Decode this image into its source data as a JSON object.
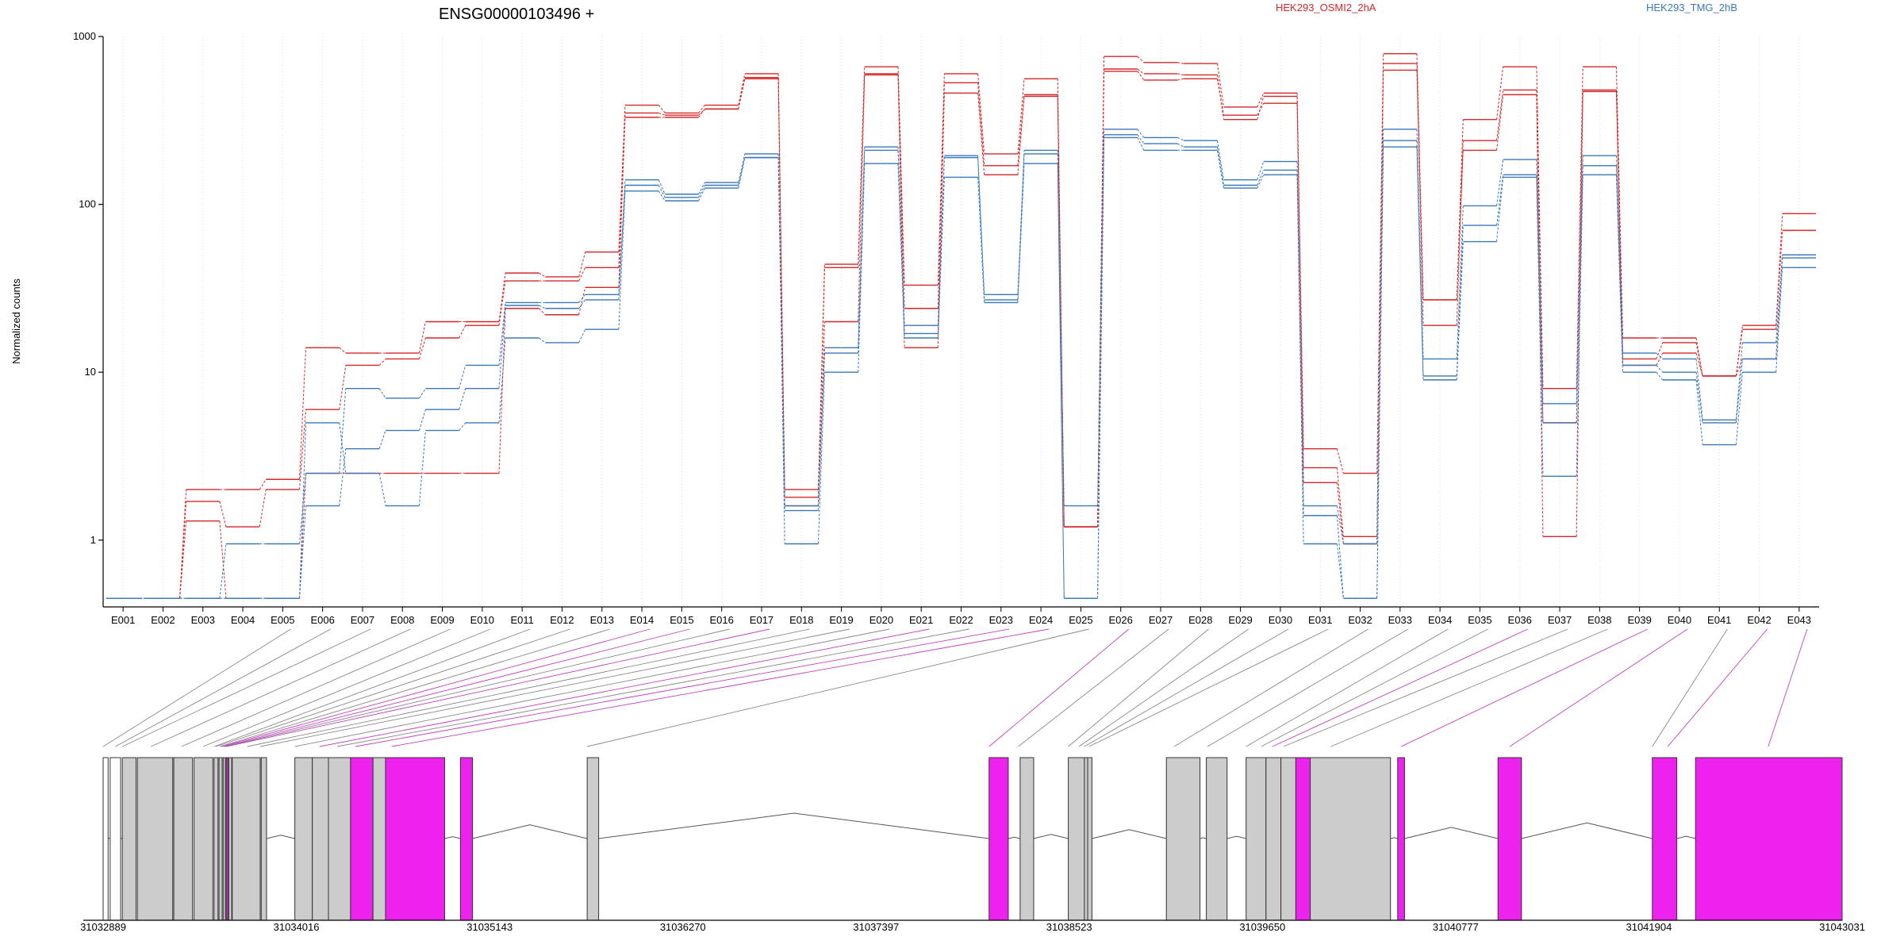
{
  "chart_data": {
    "type": "line",
    "title": "ENSG00000103496 +",
    "ylabel": "Normalized counts",
    "y_scale": "log",
    "ylim": [
      0.4,
      1000
    ],
    "y_ticks": [
      {
        "value": 1,
        "label": "1"
      },
      {
        "value": 10,
        "label": "10"
      },
      {
        "value": 100,
        "label": "100"
      },
      {
        "value": 1000,
        "label": "1000"
      }
    ],
    "grid": "vertical dotted lines at each exon",
    "legend": [
      {
        "name": "HEK293_OSMI2_2hA",
        "color": "#d62728"
      },
      {
        "name": "HEK293_TMG_2hB",
        "color": "#3a78b8"
      }
    ],
    "categories": [
      "E001",
      "E002",
      "E003",
      "E004",
      "E005",
      "E006",
      "E007",
      "E008",
      "E009",
      "E010",
      "E011",
      "E012",
      "E013",
      "E014",
      "E015",
      "E016",
      "E017",
      "E018",
      "E019",
      "E020",
      "E021",
      "E022",
      "E023",
      "E024",
      "E025",
      "E026",
      "E027",
      "E028",
      "E029",
      "E030",
      "E031",
      "E032",
      "E033",
      "E034",
      "E035",
      "E036",
      "E037",
      "E038",
      "E039",
      "E040",
      "E041",
      "E042",
      "E043"
    ],
    "series": [
      {
        "group": "HEK293_OSMI2_2hA",
        "color": "#d62728",
        "values": [
          0.45,
          0.45,
          2.0,
          2.0,
          2.3,
          14,
          13,
          13,
          20,
          20,
          39,
          37,
          52,
          390,
          350,
          390,
          600,
          2.0,
          44,
          660,
          33,
          600,
          200,
          560,
          1.2,
          760,
          700,
          690,
          380,
          460,
          3.5,
          2.5,
          790,
          27,
          320,
          660,
          8,
          660,
          16,
          16,
          9.5,
          19,
          88
        ]
      },
      {
        "group": "HEK293_OSMI2_2hA",
        "color": "#d62728",
        "values": [
          0.45,
          0.45,
          1.7,
          1.2,
          2.0,
          6,
          11,
          12,
          16,
          19,
          35,
          35,
          42,
          350,
          340,
          370,
          570,
          1.8,
          42,
          600,
          24,
          530,
          170,
          450,
          1.2,
          640,
          600,
          590,
          320,
          440,
          2.7,
          1.05,
          690,
          19,
          240,
          480,
          5,
          480,
          12,
          15,
          9.5,
          18,
          70
        ]
      },
      {
        "group": "HEK293_OSMI2_2hA",
        "color": "#d62728",
        "values": [
          0.45,
          0.45,
          1.3,
          0.45,
          0.45,
          2.5,
          2.5,
          2.5,
          2.5,
          2.5,
          24,
          22,
          32,
          330,
          330,
          370,
          560,
          1.6,
          20,
          590,
          14,
          460,
          150,
          440,
          1.2,
          620,
          550,
          560,
          340,
          400,
          2.2,
          0.95,
          630,
          27,
          210,
          450,
          1.05,
          470,
          11,
          13,
          9.5,
          12,
          50
        ]
      },
      {
        "group": "HEK293_TMG_2hB",
        "color": "#3a78b8",
        "values": [
          0.45,
          0.45,
          0.45,
          0.95,
          0.95,
          2.5,
          8,
          7,
          8,
          11,
          26,
          26,
          29,
          140,
          115,
          135,
          200,
          1.6,
          14,
          220,
          19,
          195,
          29,
          210,
          1.6,
          280,
          250,
          240,
          140,
          180,
          1.6,
          0.95,
          280,
          12,
          98,
          185,
          6.5,
          195,
          13,
          12,
          5.2,
          15,
          50
        ]
      },
      {
        "group": "HEK293_TMG_2hB",
        "color": "#3a78b8",
        "values": [
          0.45,
          0.45,
          0.45,
          0.45,
          0.45,
          1.6,
          3.5,
          4.5,
          6,
          8,
          25,
          24,
          27,
          130,
          110,
          130,
          190,
          1.5,
          13,
          210,
          17,
          190,
          27,
          200,
          0.45,
          260,
          230,
          220,
          130,
          160,
          1.4,
          0.45,
          240,
          9.5,
          75,
          150,
          5,
          170,
          11,
          10,
          5,
          12,
          48
        ]
      },
      {
        "group": "HEK293_TMG_2hB",
        "color": "#3a78b8",
        "values": [
          0.45,
          0.45,
          0.45,
          0.45,
          0.45,
          5,
          2.5,
          1.6,
          4.5,
          5,
          16,
          15,
          18,
          120,
          105,
          125,
          190,
          0.95,
          10,
          175,
          16,
          145,
          26,
          175,
          0.45,
          250,
          210,
          210,
          125,
          150,
          0.95,
          0.45,
          220,
          9,
          60,
          145,
          2.4,
          150,
          10,
          9,
          3.7,
          10,
          42
        ]
      }
    ],
    "gene_model": {
      "x_ticks": [
        {
          "value": 31032889,
          "label": "31032889"
        },
        {
          "value": 31034016,
          "label": "31034016"
        },
        {
          "value": 31035143,
          "label": "31035143"
        },
        {
          "value": 31036270,
          "label": "31036270"
        },
        {
          "value": 31037397,
          "label": "31037397"
        },
        {
          "value": 31038523,
          "label": "31038523"
        },
        {
          "value": 31039650,
          "label": "31039650"
        },
        {
          "value": 31040777,
          "label": "31040777"
        },
        {
          "value": 31041904,
          "label": "31041904"
        },
        {
          "value": 31043031,
          "label": "31043031"
        }
      ],
      "exon_color_normal": "#cccccc",
      "exon_color_significant": "#ee22ee",
      "connector_color_normal": "#888888",
      "connector_color_significant": "#c040c0",
      "exons": [
        {
          "id": "E001",
          "start": 31032889,
          "end": 31032918,
          "significant": false,
          "empty": true
        },
        {
          "id": "E002",
          "start": 31032930,
          "end": 31032991,
          "significant": false,
          "empty": true
        },
        {
          "id": "E003",
          "start": 31033001,
          "end": 31033081,
          "significant": false
        },
        {
          "id": "E004",
          "start": 31033089,
          "end": 31033295,
          "significant": false
        },
        {
          "id": "E005",
          "start": 31033301,
          "end": 31033410,
          "significant": false
        },
        {
          "id": "E006",
          "start": 31033419,
          "end": 31033529,
          "significant": false
        },
        {
          "id": "E007",
          "start": 31033536,
          "end": 31033559,
          "significant": false
        },
        {
          "id": "E008",
          "start": 31033565,
          "end": 31033583,
          "significant": false
        },
        {
          "id": "E009",
          "start": 31033589,
          "end": 31033602,
          "significant": false
        },
        {
          "id": "E010",
          "start": 31033607,
          "end": 31033617,
          "significant": true
        },
        {
          "id": "E011",
          "start": 31033622,
          "end": 31033639,
          "significant": false
        },
        {
          "id": "E012",
          "start": 31033642,
          "end": 31033805,
          "significant": false
        },
        {
          "id": "E013",
          "start": 31033811,
          "end": 31033842,
          "significant": false
        },
        {
          "id": "E014",
          "start": 31034007,
          "end": 31034109,
          "significant": false
        },
        {
          "id": "E015",
          "start": 31034109,
          "end": 31034203,
          "significant": false
        },
        {
          "id": "E016",
          "start": 31034203,
          "end": 31034332,
          "significant": false
        },
        {
          "id": "E017",
          "start": 31034332,
          "end": 31034463,
          "significant": true
        },
        {
          "id": "E018",
          "start": 31034463,
          "end": 31034536,
          "significant": false
        },
        {
          "id": "E019",
          "start": 31034536,
          "end": 31034881,
          "significant": true
        },
        {
          "id": "E020",
          "start": 31034973,
          "end": 31035043,
          "significant": true
        },
        {
          "id": "E021",
          "start": 31035712,
          "end": 31035779,
          "significant": false
        },
        {
          "id": "E022",
          "start": 31038056,
          "end": 31038168,
          "significant": true
        },
        {
          "id": "E023",
          "start": 31038237,
          "end": 31038316,
          "significant": false
        },
        {
          "id": "E024",
          "start": 31038518,
          "end": 31038612,
          "significant": false
        },
        {
          "id": "E025",
          "start": 31038612,
          "end": 31038631,
          "significant": false
        },
        {
          "id": "E026",
          "start": 31038631,
          "end": 31038656,
          "significant": false
        },
        {
          "id": "E027",
          "start": 31039090,
          "end": 31039286,
          "significant": false
        },
        {
          "id": "E028",
          "start": 31039323,
          "end": 31039444,
          "significant": false
        },
        {
          "id": "E029",
          "start": 31039555,
          "end": 31039671,
          "significant": false
        },
        {
          "id": "E030",
          "start": 31039671,
          "end": 31039758,
          "significant": false
        },
        {
          "id": "E031",
          "start": 31039758,
          "end": 31039845,
          "significant": false
        },
        {
          "id": "E032",
          "start": 31039845,
          "end": 31039929,
          "significant": true
        },
        {
          "id": "E033",
          "start": 31039929,
          "end": 31040397,
          "significant": false
        },
        {
          "id": "E034",
          "start": 31040439,
          "end": 31040479,
          "significant": true
        },
        {
          "id": "E035",
          "start": 31041024,
          "end": 31041161,
          "significant": true
        },
        {
          "id": "E036",
          "start": 31041924,
          "end": 31042067,
          "significant": true
        },
        {
          "id": "E037",
          "start": 31042176,
          "end": 31043031,
          "significant": true
        }
      ],
      "links": [
        {
          "exon": "E001",
          "target": 31032889,
          "significant": false
        },
        {
          "exon": "E002",
          "target": 31032960,
          "significant": false
        },
        {
          "exon": "E003",
          "target": 31033001,
          "significant": false
        },
        {
          "exon": "E004",
          "target": 31033168,
          "significant": false
        },
        {
          "exon": "E005",
          "target": 31033346,
          "significant": false
        },
        {
          "exon": "E006",
          "target": 31033472,
          "significant": false
        },
        {
          "exon": "E007",
          "target": 31033536,
          "significant": false
        },
        {
          "exon": "E008",
          "target": 31033548,
          "significant": false
        },
        {
          "exon": "E009",
          "target": 31033570,
          "significant": false
        },
        {
          "exon": "E010",
          "target": 31033578,
          "significant": true
        },
        {
          "exon": "E011",
          "target": 31033589,
          "significant": true
        },
        {
          "exon": "E012",
          "target": 31033597,
          "significant": false
        },
        {
          "exon": "E013",
          "target": 31033607,
          "significant": true
        },
        {
          "exon": "E014",
          "target": 31033730,
          "significant": false
        },
        {
          "exon": "E015",
          "target": 31033806,
          "significant": false
        },
        {
          "exon": "E016",
          "target": 31034007,
          "significant": false
        },
        {
          "exon": "E017",
          "target": 31034152,
          "significant": true
        },
        {
          "exon": "E018",
          "target": 31034254,
          "significant": false
        },
        {
          "exon": "E019",
          "target": 31034361,
          "significant": true
        },
        {
          "exon": "E020",
          "target": 31034572,
          "significant": true
        },
        {
          "exon": "E021",
          "target": 31035712,
          "significant": false
        },
        {
          "exon": "E022",
          "target": 31038056,
          "significant": true
        },
        {
          "exon": "E023",
          "target": 31038226,
          "significant": false
        },
        {
          "exon": "E024",
          "target": 31038518,
          "significant": false
        },
        {
          "exon": "E025",
          "target": 31038580,
          "significant": false
        },
        {
          "exon": "E026",
          "target": 31038612,
          "significant": false
        },
        {
          "exon": "E027",
          "target": 31038639,
          "significant": false
        },
        {
          "exon": "E028",
          "target": 31039135,
          "significant": false
        },
        {
          "exon": "E029",
          "target": 31039330,
          "significant": false
        },
        {
          "exon": "E030",
          "target": 31039555,
          "significant": false
        },
        {
          "exon": "E031",
          "target": 31039643,
          "significant": false
        },
        {
          "exon": "E032",
          "target": 31039708,
          "significant": true
        },
        {
          "exon": "E033",
          "target": 31039773,
          "significant": false
        },
        {
          "exon": "E034",
          "target": 31040049,
          "significant": false
        },
        {
          "exon": "E035",
          "target": 31040459,
          "significant": true
        },
        {
          "exon": "E036",
          "target": 31041093,
          "significant": true
        },
        {
          "exon": "E037",
          "target": 31041924,
          "significant": false
        },
        {
          "exon": "E038",
          "target": 31042014,
          "significant": true
        },
        {
          "exon": "E039",
          "target": 31042600,
          "significant": true
        }
      ],
      "link_sources": [
        "E001",
        "E002",
        "E003",
        "E004",
        "E005",
        "E006",
        "E007",
        "E008",
        "E009",
        "E010",
        "E011",
        "E012",
        "E013",
        "E014",
        "E015",
        "E016",
        "E017",
        "E018",
        "E019",
        "E020",
        "E021",
        "E022",
        "E023",
        "E024",
        "E025",
        "E026",
        "E027",
        "E028",
        "E029",
        "E030",
        "E031",
        "E032",
        "E033",
        "E034",
        "E035",
        "E036",
        "E037",
        "E038",
        "E039"
      ],
      "link_sources_mapped": [
        "E001",
        "E002",
        "E003",
        "E004",
        "E005",
        "E006",
        "E007",
        "E008",
        "E009",
        "E010",
        "E011",
        "E012",
        "E013",
        "E014",
        "E015",
        "E016",
        "E017",
        "E018",
        "E019",
        "E020",
        "E021",
        "E022",
        "E023",
        "E024",
        "E025",
        "E026",
        "E027",
        "E028",
        "E029",
        "E030",
        "E031",
        "E032",
        "E033",
        "E034",
        "E035",
        "E036",
        "E037",
        "E038",
        "E039"
      ]
    }
  }
}
